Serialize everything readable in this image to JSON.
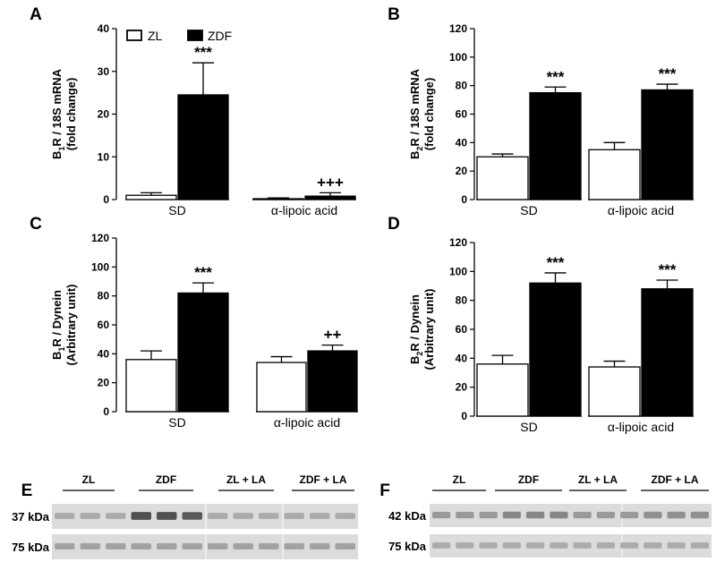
{
  "chart_data": [
    {
      "panel": "A",
      "type": "bar",
      "ylabel": "B1R / 18S mRNA",
      "ylabel_main": "B",
      "ylabel_sub": "1",
      "ylabel_rest": "R / 18S mRNA",
      "ylabel2": "(fold change)",
      "ylim": [
        0,
        40
      ],
      "yticks": [
        "0",
        "10",
        "20",
        "30",
        "40"
      ],
      "categories": [
        "SD",
        "α-lipoic acid"
      ],
      "series": [
        {
          "name": "ZL",
          "values": [
            1,
            0.2
          ],
          "errors": [
            0.6,
            0.2
          ]
        },
        {
          "name": "ZDF",
          "values": [
            24.5,
            0.8
          ],
          "errors": [
            7.5,
            0.8
          ]
        }
      ],
      "annotations": [
        {
          "text": "***",
          "category": 0,
          "series": 1
        },
        {
          "text": "+++",
          "category": 1,
          "series": 1
        }
      ]
    },
    {
      "panel": "B",
      "type": "bar",
      "ylabel": "B2R / 18S mRNA",
      "ylabel_main": "B",
      "ylabel_sub": "2",
      "ylabel_rest": "R / 18S mRNA",
      "ylabel2": "(fold change)",
      "ylim": [
        0,
        120
      ],
      "yticks": [
        "0",
        "20",
        "40",
        "60",
        "80",
        "100",
        "120"
      ],
      "categories": [
        "SD",
        "α-lipoic acid"
      ],
      "series": [
        {
          "name": "ZL",
          "values": [
            30,
            35
          ],
          "errors": [
            2,
            5
          ]
        },
        {
          "name": "ZDF",
          "values": [
            75,
            77
          ],
          "errors": [
            4,
            4
          ]
        }
      ],
      "annotations": [
        {
          "text": "***",
          "category": 0,
          "series": 1
        },
        {
          "text": "***",
          "category": 1,
          "series": 1
        }
      ]
    },
    {
      "panel": "C",
      "type": "bar",
      "ylabel": "B1R / Dynein",
      "ylabel_main": "B",
      "ylabel_sub": "1",
      "ylabel_rest": "R / Dynein",
      "ylabel2": "(Arbitrary unit)",
      "ylim": [
        0,
        120
      ],
      "yticks": [
        "0",
        "20",
        "40",
        "60",
        "80",
        "100",
        "120"
      ],
      "categories": [
        "SD",
        "α-lipoic acid"
      ],
      "series": [
        {
          "name": "ZL",
          "values": [
            36,
            34
          ],
          "errors": [
            6,
            4
          ]
        },
        {
          "name": "ZDF",
          "values": [
            82,
            42
          ],
          "errors": [
            7,
            4
          ]
        }
      ],
      "annotations": [
        {
          "text": "***",
          "category": 0,
          "series": 1
        },
        {
          "text": "++",
          "category": 1,
          "series": 1
        }
      ]
    },
    {
      "panel": "D",
      "type": "bar",
      "ylabel": "B2R / Dynein",
      "ylabel_main": "B",
      "ylabel_sub": "2",
      "ylabel_rest": "R / Dynein",
      "ylabel2": "(Arbitrary unit)",
      "ylim": [
        0,
        120
      ],
      "yticks": [
        "0",
        "20",
        "40",
        "60",
        "80",
        "100",
        "120"
      ],
      "categories": [
        "SD",
        "α-lipoic acid"
      ],
      "series": [
        {
          "name": "ZL",
          "values": [
            36,
            34
          ],
          "errors": [
            6,
            4
          ]
        },
        {
          "name": "ZDF",
          "values": [
            92,
            88
          ],
          "errors": [
            7,
            6
          ]
        }
      ],
      "annotations": [
        {
          "text": "***",
          "category": 0,
          "series": 1
        },
        {
          "text": "***",
          "category": 1,
          "series": 1
        }
      ]
    }
  ],
  "legend": {
    "labels": [
      "ZL",
      "ZDF"
    ],
    "colors": [
      "#ffffff",
      "#000000"
    ]
  },
  "blots": [
    {
      "panel": "E",
      "groups": [
        "ZL",
        "ZDF",
        "ZL + LA",
        "ZDF + LA"
      ],
      "rows": [
        {
          "label": "37 kDa",
          "intensity": [
            0.45,
            0.45,
            0.45,
            0.95,
            0.95,
            0.9,
            0.45,
            0.45,
            0.45,
            0.45,
            0.45,
            0.45
          ]
        },
        {
          "label": "75 kDa",
          "intensity": [
            0.5,
            0.5,
            0.5,
            0.5,
            0.5,
            0.5,
            0.5,
            0.5,
            0.5,
            0.5,
            0.5,
            0.5
          ]
        }
      ]
    },
    {
      "panel": "F",
      "groups": [
        "ZL",
        "ZDF",
        "ZL + LA",
        "ZDF + LA"
      ],
      "rows": [
        {
          "label": "42 kDa",
          "intensity": [
            0.55,
            0.55,
            0.55,
            0.65,
            0.65,
            0.65,
            0.55,
            0.55,
            0.55,
            0.6,
            0.6,
            0.6
          ]
        },
        {
          "label": "75 kDa",
          "intensity": [
            0.45,
            0.45,
            0.45,
            0.45,
            0.45,
            0.45,
            0.45,
            0.45,
            0.45,
            0.45,
            0.45,
            0.45
          ]
        }
      ]
    }
  ]
}
